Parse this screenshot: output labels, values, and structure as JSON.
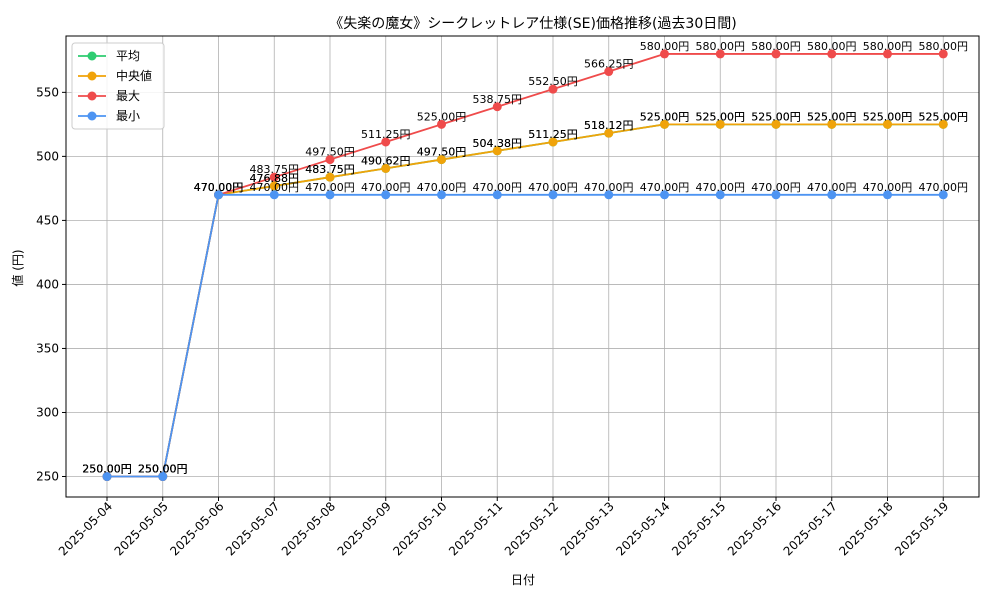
{
  "chart_data": {
    "type": "line",
    "title": "《失楽の魔女》シークレットレア仕様(SE)価格推移(過去30日間)",
    "xlabel": "日付",
    "ylabel": "値 (円)",
    "ylim": [
      234,
      594
    ],
    "yticks": [
      250,
      300,
      350,
      400,
      450,
      500,
      550
    ],
    "grid": true,
    "legend_position": "top-left",
    "categories": [
      "2025-05-04",
      "2025-05-05",
      "2025-05-06",
      "2025-05-07",
      "2025-05-08",
      "2025-05-09",
      "2025-05-10",
      "2025-05-11",
      "2025-05-12",
      "2025-05-13",
      "2025-05-14",
      "2025-05-15",
      "2025-05-16",
      "2025-05-17",
      "2025-05-18",
      "2025-05-19"
    ],
    "series": [
      {
        "name": "平均",
        "color": "#2ecc71",
        "values": [
          250.0,
          250.0,
          470.0,
          476.88,
          483.75,
          490.62,
          497.5,
          504.38,
          511.25,
          518.12,
          525.0,
          525.0,
          525.0,
          525.0,
          525.0,
          525.0
        ],
        "labels": [
          "250.00円",
          "250.00円",
          "470.00円",
          "476.88円",
          "483.75円",
          "490.62円",
          "497.50円",
          "504.38円",
          "511.25円",
          "518.12円",
          "525.00円",
          "525.00円",
          "525.00円",
          "525.00円",
          "525.00円",
          "525.00円"
        ]
      },
      {
        "name": "中央値",
        "color": "#f0a30a",
        "values": [
          250.0,
          250.0,
          470.0,
          476.88,
          483.75,
          490.62,
          497.5,
          504.38,
          511.25,
          518.12,
          525.0,
          525.0,
          525.0,
          525.0,
          525.0,
          525.0
        ],
        "labels": [
          "250.00円",
          "250.00円",
          "470.00円",
          "476.88円",
          "483.75円",
          "490.62円",
          "497.50円",
          "504.38円",
          "511.25円",
          "518.12円",
          "525.00円",
          "525.00円",
          "525.00円",
          "525.00円",
          "525.00円",
          "525.00円"
        ]
      },
      {
        "name": "最大",
        "color": "#ef4b4b",
        "values": [
          250.0,
          250.0,
          470.0,
          483.75,
          497.5,
          511.25,
          525.0,
          538.75,
          552.5,
          566.25,
          580.0,
          580.0,
          580.0,
          580.0,
          580.0,
          580.0
        ],
        "labels": [
          "250.00円",
          "250.00円",
          "470.00円",
          "483.75円",
          "497.50円",
          "511.25円",
          "525.00円",
          "538.75円",
          "552.50円",
          "566.25円",
          "580.00円",
          "580.00円",
          "580.00円",
          "580.00円",
          "580.00円",
          "580.00円"
        ]
      },
      {
        "name": "最小",
        "color": "#4d94f2",
        "values": [
          250.0,
          250.0,
          470.0,
          470.0,
          470.0,
          470.0,
          470.0,
          470.0,
          470.0,
          470.0,
          470.0,
          470.0,
          470.0,
          470.0,
          470.0,
          470.0
        ],
        "labels": [
          "250.00円",
          "250.00円",
          "470.00円",
          "470.00円",
          "470.00円",
          "470.00円",
          "470.00円",
          "470.00円",
          "470.00円",
          "470.00円",
          "470.00円",
          "470.00円",
          "470.00円",
          "470.00円",
          "470.00円",
          "470.00円"
        ]
      }
    ]
  }
}
